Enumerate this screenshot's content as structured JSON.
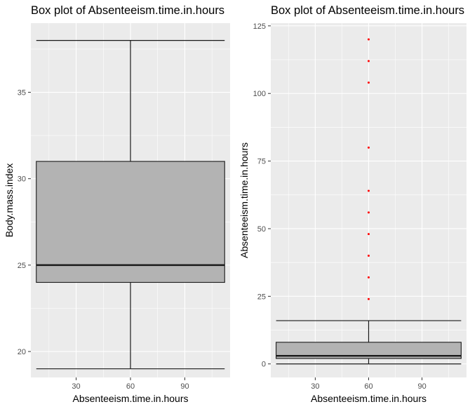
{
  "chart_data": [
    {
      "type": "box",
      "title": "Box plot of Absenteeism.time.in.hours",
      "xlabel": "Absenteeism.time.in.hours",
      "ylabel": "Body.mass.index",
      "xlim": [
        5,
        115
      ],
      "ylim": [
        18.5,
        39.0
      ],
      "x_ticks": [
        30,
        60,
        90
      ],
      "y_ticks": [
        20,
        25,
        30,
        35
      ],
      "grid": true,
      "boxes": [
        {
          "x": 60,
          "xmin": 8,
          "xmax": 112,
          "whisker_low": 19,
          "q1": 24,
          "median": 25,
          "q3": 31,
          "whisker_high": 38,
          "outliers": []
        }
      ]
    },
    {
      "type": "box",
      "title": "Box plot of Absenteeism.time.in.hours",
      "xlabel": "Absenteeism.time.in.hours",
      "ylabel": "Absenteeism.time.in.hours",
      "xlim": [
        5,
        115
      ],
      "ylim": [
        -5,
        126
      ],
      "x_ticks": [
        30,
        60,
        90
      ],
      "y_ticks": [
        0,
        25,
        50,
        75,
        100,
        125
      ],
      "grid": true,
      "boxes": [
        {
          "x": 60,
          "xmin": 8,
          "xmax": 112,
          "whisker_low": 0,
          "q1": 2,
          "median": 3,
          "q3": 8,
          "whisker_high": 16,
          "outliers": [
            24,
            32,
            40,
            48,
            56,
            64,
            80,
            104,
            112,
            120
          ]
        }
      ]
    }
  ],
  "colors": {
    "panel_bg": "#ebebeb",
    "grid": "#ffffff",
    "box_fill": "#b3b3b3",
    "box_line": "#1a1a1a",
    "outlier": "#ff0000",
    "tick_text": "#4d4d4d"
  }
}
